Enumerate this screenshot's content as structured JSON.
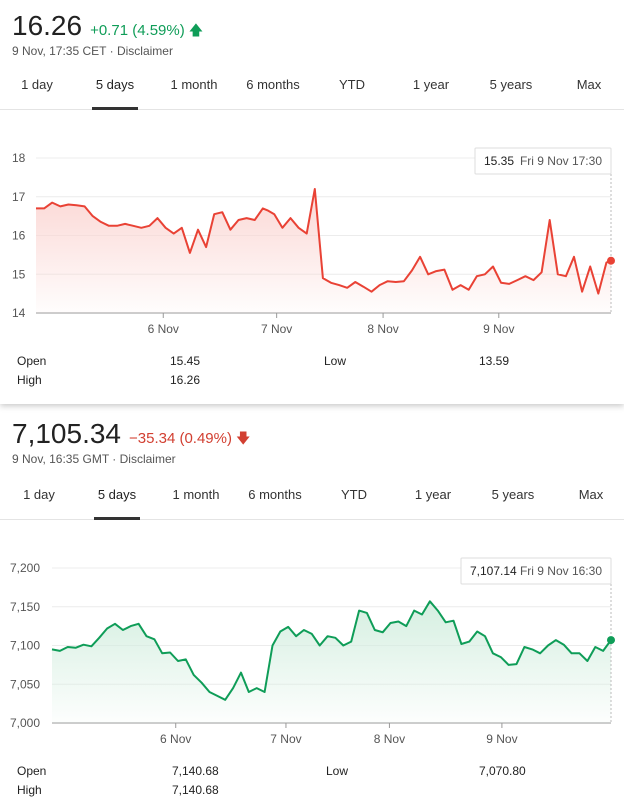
{
  "panels": [
    {
      "quote": {
        "price": "16.26",
        "change": "+0.71 (4.59%)",
        "direction": "up",
        "timestamp": "9 Nov, 17:35 CET",
        "separator": "·",
        "disclaimer": "Disclaimer"
      },
      "tabs": [
        "1 day",
        "5 days",
        "1 month",
        "6 months",
        "YTD",
        "1 year",
        "5 years",
        "Max"
      ],
      "active_tab": "5 days",
      "tooltip": {
        "value": "15.35",
        "date": "Fri 9 Nov 17:30"
      },
      "stats": {
        "open_label": "Open",
        "open": "15.45",
        "high_label": "High",
        "high": "16.26",
        "low_label": "Low",
        "low": "13.59"
      },
      "line_color": "#e94235",
      "fill_color": "#fbd5d2"
    },
    {
      "quote": {
        "price": "7,105.34",
        "change": "−35.34 (0.49%)",
        "direction": "down",
        "timestamp": "9 Nov, 16:35 GMT",
        "separator": "·",
        "disclaimer": "Disclaimer"
      },
      "tabs": [
        "1 day",
        "5 days",
        "1 month",
        "6 months",
        "YTD",
        "1 year",
        "5 years",
        "Max"
      ],
      "active_tab": "5 days",
      "tooltip": {
        "value": "7,107.14",
        "date": "Fri 9 Nov 16:30"
      },
      "stats": {
        "open_label": "Open",
        "open": "7,140.68",
        "high_label": "High",
        "high": "7,140.68",
        "low_label": "Low",
        "low": "7,070.80"
      },
      "line_color": "#0f9d58",
      "fill_color": "#d3eedf"
    }
  ],
  "chart_data": [
    {
      "type": "area",
      "title": "",
      "x_ticks": [
        "6 Nov",
        "7 Nov",
        "8 Nov",
        "9 Nov"
      ],
      "y_ticks": [
        18,
        17,
        16,
        15,
        14
      ],
      "ylim": [
        14,
        18
      ],
      "grid": true,
      "legend": "none",
      "x": [
        0,
        0.07,
        0.14,
        0.21,
        0.28,
        0.35,
        0.42,
        0.49,
        0.56,
        0.63,
        0.7,
        0.77,
        0.84,
        0.91,
        0.98,
        1.05,
        1.12,
        1.19,
        1.26,
        1.33,
        1.4,
        1.47,
        1.54,
        1.61,
        1.68,
        1.75,
        1.82,
        1.89,
        1.96,
        2.0,
        2.06,
        2.13,
        2.2,
        2.27,
        2.34,
        2.41,
        2.48,
        2.55,
        2.62,
        2.69,
        2.76,
        2.83,
        2.9,
        2.97,
        3.04,
        3.11,
        3.18,
        3.25,
        3.32,
        3.39,
        3.46,
        3.53,
        3.6,
        3.67,
        3.74,
        3.81,
        3.88,
        3.95,
        4.02,
        4.09,
        4.16,
        4.23,
        4.3,
        4.37,
        4.44,
        4.51,
        4.58,
        4.65,
        4.72,
        4.79,
        4.86,
        4.93,
        4.97
      ],
      "values": [
        16.7,
        16.7,
        16.85,
        16.75,
        16.8,
        16.78,
        16.75,
        16.5,
        16.35,
        16.25,
        16.25,
        16.3,
        16.25,
        16.2,
        16.25,
        16.45,
        16.2,
        16.05,
        16.2,
        15.55,
        16.15,
        15.7,
        16.55,
        16.6,
        16.15,
        16.4,
        16.45,
        16.4,
        16.7,
        16.65,
        16.55,
        16.2,
        16.45,
        16.2,
        16.05,
        17.2,
        14.9,
        14.78,
        14.72,
        14.65,
        14.8,
        14.68,
        14.55,
        14.72,
        14.82,
        14.8,
        14.82,
        15.1,
        15.45,
        15.0,
        15.08,
        15.12,
        14.6,
        14.72,
        14.6,
        14.95,
        15.0,
        15.2,
        14.78,
        14.75,
        14.85,
        14.95,
        14.85,
        15.05,
        16.4,
        15.0,
        14.95,
        15.45,
        14.55,
        15.2,
        14.5,
        15.3,
        15.35
      ],
      "series": [
        {
          "values_ref": "values"
        }
      ]
    },
    {
      "type": "area",
      "title": "",
      "x_ticks": [
        "6 Nov",
        "7 Nov",
        "8 Nov",
        "9 Nov"
      ],
      "y_ticks": [
        7200,
        7150,
        7100,
        7050,
        7000
      ],
      "ylim": [
        7000,
        7200
      ],
      "grid": true,
      "legend": "none",
      "x": [
        0,
        0.07,
        0.14,
        0.21,
        0.28,
        0.35,
        0.42,
        0.49,
        0.56,
        0.63,
        0.7,
        0.77,
        0.84,
        0.91,
        0.98,
        1.05,
        1.12,
        1.19,
        1.26,
        1.33,
        1.4,
        1.47,
        1.54,
        1.61,
        1.68,
        1.75,
        1.82,
        1.89,
        1.96,
        2.03,
        2.1,
        2.17,
        2.24,
        2.31,
        2.38,
        2.45,
        2.52,
        2.59,
        2.66,
        2.73,
        2.8,
        2.87,
        2.94,
        3.01,
        3.08,
        3.15,
        3.22,
        3.29,
        3.36,
        3.43,
        3.5,
        3.57,
        3.64,
        3.71,
        3.78,
        3.85,
        3.92,
        3.99,
        4.06,
        4.13,
        4.2,
        4.27,
        4.34,
        4.41,
        4.48,
        4.55,
        4.62,
        4.69,
        4.76,
        4.83,
        4.9,
        4.97
      ],
      "values": [
        7095,
        7093,
        7098,
        7097,
        7101,
        7099,
        7110,
        7122,
        7128,
        7120,
        7125,
        7128,
        7112,
        7108,
        7090,
        7091,
        7080,
        7082,
        7062,
        7052,
        7040,
        7035,
        7030,
        7045,
        7065,
        7040,
        7045,
        7040,
        7100,
        7118,
        7124,
        7112,
        7120,
        7115,
        7100,
        7112,
        7110,
        7100,
        7105,
        7145,
        7142,
        7120,
        7117,
        7129,
        7131,
        7125,
        7145,
        7140,
        7157,
        7145,
        7130,
        7132,
        7102,
        7105,
        7118,
        7112,
        7090,
        7085,
        7075,
        7076,
        7098,
        7095,
        7090,
        7100,
        7107,
        7101,
        7090,
        7090,
        7080,
        7098,
        7093,
        7107
      ],
      "series": [
        {
          "values_ref": "values"
        }
      ]
    }
  ]
}
